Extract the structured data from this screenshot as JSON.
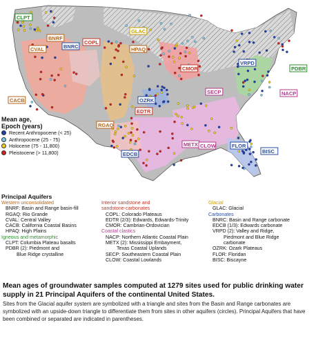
{
  "map": {
    "labels": [
      {
        "id": "CLPT",
        "text": "CLPT",
        "color": "#2e8b2e"
      },
      {
        "id": "BNRF",
        "text": "BNRF",
        "color": "#b5651d"
      },
      {
        "id": "CVAL",
        "text": "CVAL",
        "color": "#b5651d"
      },
      {
        "id": "BNRC",
        "text": "BNRC",
        "color": "#2a4d9b"
      },
      {
        "id": "COPL",
        "text": "COPL",
        "color": "#c0392b"
      },
      {
        "id": "GLAC",
        "text": "GLAC",
        "color": "#c8a000"
      },
      {
        "id": "HPAQ",
        "text": "HPAQ",
        "color": "#b5651d"
      },
      {
        "id": "CMOR",
        "text": "CMOR",
        "color": "#c0392b"
      },
      {
        "id": "VRPD",
        "text": "VRPD",
        "color": "#2a4d9b"
      },
      {
        "id": "PDBR",
        "text": "PDBR",
        "color": "#2e8b2e"
      },
      {
        "id": "NACP",
        "text": "NACP",
        "color": "#b03a8c"
      },
      {
        "id": "SECP",
        "text": "SECP",
        "color": "#b03a8c"
      },
      {
        "id": "OZRK",
        "text": "OZRK",
        "color": "#2a4d9b"
      },
      {
        "id": "EDTR",
        "text": "EDTR",
        "color": "#c0392b"
      },
      {
        "id": "CACB",
        "text": "CACB",
        "color": "#b5651d"
      },
      {
        "id": "RGAQ",
        "text": "RGAQ",
        "color": "#b5651d"
      },
      {
        "id": "EDCB",
        "text": "EDCB",
        "color": "#2a4d9b"
      },
      {
        "id": "METX",
        "text": "METX",
        "color": "#b03a8c"
      },
      {
        "id": "CLOW",
        "text": "CLOW",
        "color": "#b03a8c"
      },
      {
        "id": "FLOR",
        "text": "FLOR",
        "color": "#2a4d9b"
      },
      {
        "id": "BISC",
        "text": "BISC",
        "color": "#2a4d9b"
      }
    ]
  },
  "legend_age": {
    "title_line1": "Mean age,",
    "title_line2": "Epoch (years)",
    "items": [
      {
        "label": "Recent Anthropocene (< 25)",
        "color": "#1f3fb4"
      },
      {
        "label": "Anthropocene (25 - 75)",
        "color": "#7fc8e8"
      },
      {
        "label": "Holocene (75 - 11,800)",
        "color": "#f2d01a"
      },
      {
        "label": "Pleistocene (> 11,800)",
        "color": "#d81f1f"
      }
    ]
  },
  "aquifers": {
    "title": "Principal Aquifers",
    "col1": [
      {
        "title": "Western unconsolidated",
        "color": "#b5651d",
        "items": [
          "BNRF: Basin and Range basin-fill",
          "RGAQ: Rio Grande",
          "CVAL: Central Valley",
          "CACB: California Coastal Basins",
          "HPAQ: High Plains"
        ]
      },
      {
        "title": "Igneous and metamorphic",
        "color": "#2e8b2e",
        "items": [
          "CLPT: Columbia Plateau basalts",
          "PDBR (2): Piedmont and",
          "Blue Ridge crystalline"
        ]
      }
    ],
    "col2": [
      {
        "title": "Interior sandstone and\nsandstone-carbonates",
        "color": "#c0392b",
        "items": [
          "COPL: Colorado Plateaus",
          "EDTR (2/3): Edwards, Edwards-Trinity",
          "CMOR: Cambrian-Ordovician"
        ]
      },
      {
        "title": "Coastal clastics",
        "color": "#b03a8c",
        "items": [
          "NACP: Northern Atlantic Coastal Plain",
          "METX (2): Mississippi Embayment,",
          "Texas Coastal Uplands",
          "SECP: Southeastern Coastal Plain",
          "CLOW: Coastal Lowlands"
        ]
      }
    ],
    "col3": [
      {
        "title": "Glacial",
        "color": "#c8a000",
        "items": [
          "GLAC: Glacial"
        ]
      },
      {
        "title": "Carbonates",
        "color": "#2a4d9b",
        "items": [
          "BNRC: Basin and Range carbonate",
          "EDCB (1/3): Edwards carbonate",
          "VRPD (2): Valley and Ridge,",
          "Piedmont and Blue Ridge",
          "carbonate",
          "OZRK: Ozark Plateaus",
          "FLOR: Floridan",
          "BISC: Biscayne"
        ]
      }
    ]
  },
  "caption": {
    "title": "Mean ages of groundwater samples computed at 1279 sites used for public drinking water supply in 21 Principal Aquifers of the continental United States.",
    "body": "Sites from the Glacial aquifer system are symbolized with a triangle and sites from the Basin and Range carbonates are symbolized with an upside-down triangle to differentiate them from sites in other aquifers (circles). Principal Aquifers that have been combined or separated are indicated in parentheses."
  }
}
